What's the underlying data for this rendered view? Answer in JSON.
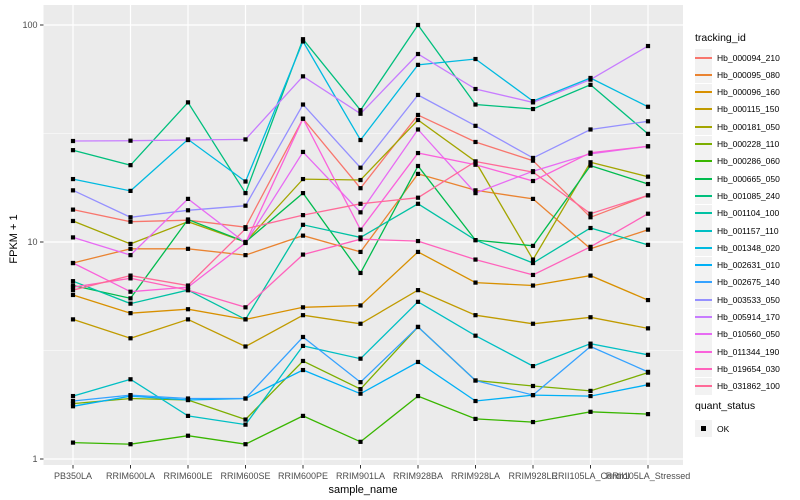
{
  "chart_data": {
    "type": "line",
    "title": "",
    "xlabel": "sample_name",
    "ylabel": "FPKM + 1",
    "y_scale": "log10",
    "ylim": [
      1,
      115
    ],
    "y_ticks": [
      1,
      10,
      100
    ],
    "y_minor_ticks": [
      3.162,
      31.623
    ],
    "grid": true,
    "legend_position": "right",
    "point_shape": "square",
    "categories": [
      "PB350LA",
      "RRIM600LA",
      "RRIM600LE",
      "RRIM600SE",
      "RRIM600PE",
      "RRIM901LA",
      "RRIM928BA",
      "RRIM928LA",
      "RRIM928LE",
      "RRII105LA_Control",
      "RRII105LA_Stressed"
    ],
    "series": [
      {
        "name": "Hb_000094_210",
        "color": "#F8766D",
        "values": [
          14.1,
          12.4,
          12.6,
          11.7,
          37.0,
          17.7,
          38.5,
          28.9,
          23.7,
          13.0,
          16.4
        ]
      },
      {
        "name": "Hb_000095_080",
        "color": "#EA8331",
        "values": [
          8.0,
          9.3,
          9.3,
          8.7,
          10.7,
          9.0,
          20.6,
          17.3,
          15.8,
          9.3,
          11.4
        ]
      },
      {
        "name": "Hb_000096_160",
        "color": "#D89000",
        "values": [
          5.7,
          4.7,
          4.9,
          4.4,
          5.0,
          5.1,
          9.0,
          6.5,
          6.3,
          7.0,
          5.4
        ]
      },
      {
        "name": "Hb_000115_150",
        "color": "#C09B00",
        "values": [
          4.4,
          3.6,
          4.4,
          3.3,
          4.6,
          4.2,
          6.0,
          4.6,
          4.2,
          4.5,
          4.0
        ]
      },
      {
        "name": "Hb_000181_050",
        "color": "#A3A500",
        "values": [
          12.5,
          9.8,
          12.4,
          10.0,
          19.5,
          19.3,
          36.5,
          23.5,
          8.3,
          23.3,
          20.0
        ]
      },
      {
        "name": "Hb_000228_110",
        "color": "#7CAE00",
        "values": [
          1.8,
          1.9,
          1.87,
          1.52,
          2.83,
          2.1,
          4.06,
          2.3,
          2.17,
          2.06,
          2.5
        ]
      },
      {
        "name": "Hb_000286_060",
        "color": "#39B600",
        "values": [
          1.19,
          1.17,
          1.28,
          1.17,
          1.58,
          1.2,
          1.95,
          1.53,
          1.48,
          1.65,
          1.61
        ]
      },
      {
        "name": "Hb_000665_050",
        "color": "#00BB4E",
        "values": [
          6.3,
          5.5,
          12.7,
          10.0,
          16.8,
          7.2,
          22.4,
          10.2,
          9.6,
          22.5,
          18.5
        ]
      },
      {
        "name": "Hb_001085_240",
        "color": "#00BF7D",
        "values": [
          26.5,
          22.6,
          44.0,
          16.8,
          86.0,
          40.5,
          100.0,
          43.0,
          41.0,
          53.0,
          31.5
        ]
      },
      {
        "name": "Hb_001104_100",
        "color": "#00C1A3",
        "values": [
          6.6,
          5.2,
          6.0,
          4.4,
          12.0,
          10.5,
          15.0,
          10.2,
          8.0,
          11.6,
          9.7
        ]
      },
      {
        "name": "Hb_001157_110",
        "color": "#00BFC4",
        "values": [
          1.95,
          2.33,
          1.58,
          1.44,
          3.32,
          2.9,
          5.3,
          3.7,
          2.68,
          3.4,
          3.02
        ]
      },
      {
        "name": "Hb_001348_020",
        "color": "#00BAE0",
        "values": [
          19.5,
          17.2,
          29.7,
          19.0,
          84.0,
          29.5,
          65.5,
          69.7,
          44.6,
          57.0,
          42.0
        ]
      },
      {
        "name": "Hb_002631_010",
        "color": "#00B0F6",
        "values": [
          1.75,
          1.95,
          1.87,
          1.9,
          2.57,
          2.0,
          2.8,
          1.85,
          1.97,
          1.95,
          2.2
        ]
      },
      {
        "name": "Hb_002675_140",
        "color": "#35A2FF",
        "values": [
          1.85,
          1.97,
          1.9,
          1.9,
          3.65,
          2.26,
          4.06,
          2.3,
          1.97,
          3.3,
          2.52
        ]
      },
      {
        "name": "Hb_003533_050",
        "color": "#9590FF",
        "values": [
          17.3,
          13.0,
          14.0,
          14.7,
          43.0,
          22.0,
          47.6,
          34.3,
          24.4,
          33.0,
          36.0
        ]
      },
      {
        "name": "Hb_005914_170",
        "color": "#C77CFF",
        "values": [
          29.2,
          29.3,
          29.5,
          29.7,
          58.0,
          39.0,
          73.5,
          50.7,
          44.0,
          56.0,
          80.0
        ]
      },
      {
        "name": "Hb_010560_050",
        "color": "#E76BF3",
        "values": [
          10.5,
          8.7,
          15.8,
          9.9,
          26.0,
          13.7,
          33.0,
          16.8,
          21.2,
          25.5,
          27.6
        ]
      },
      {
        "name": "Hb_011344_190",
        "color": "#FA62DB",
        "values": [
          8.0,
          5.9,
          6.2,
          9.9,
          37.0,
          11.4,
          25.7,
          22.7,
          19.1,
          25.8,
          27.6
        ]
      },
      {
        "name": "Hb_019654_030",
        "color": "#FF62BC",
        "values": [
          6.2,
          6.8,
          6.0,
          5.0,
          8.75,
          10.3,
          10.1,
          8.3,
          7.05,
          9.5,
          13.5
        ]
      },
      {
        "name": "Hb_031862_100",
        "color": "#FF6A98",
        "values": [
          6.0,
          7.0,
          6.3,
          11.5,
          13.3,
          15.0,
          16.0,
          23.5,
          21.0,
          13.5,
          16.4
        ]
      }
    ]
  },
  "legend": {
    "tracking_title": "tracking_id",
    "quant_title": "quant_status",
    "quant_value": "OK"
  },
  "colors": {
    "background": "#FFFFFF",
    "panel_bg": "#EBEBEB",
    "grid": "#FFFFFF",
    "axis_text": "#4D4D4D",
    "tick_mark": "#333333",
    "legend_key_bg": "#F2F2F2",
    "point": "#000000"
  }
}
